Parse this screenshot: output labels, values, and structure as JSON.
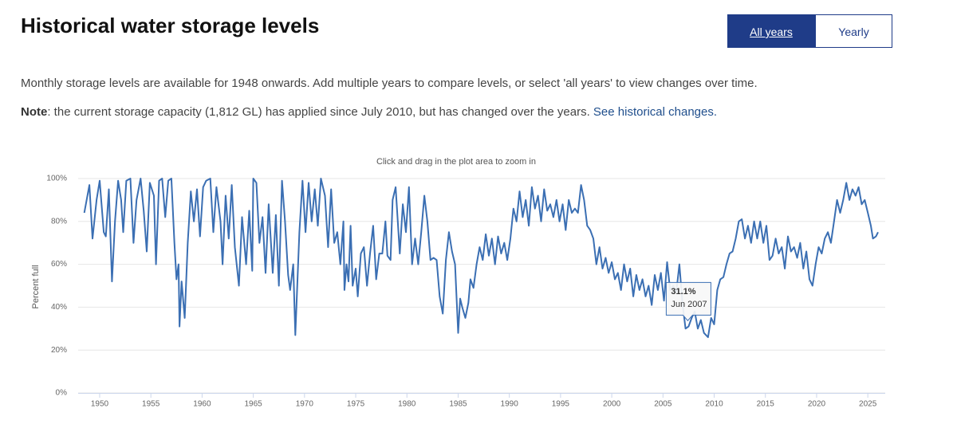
{
  "header": {
    "title": "Historical water storage levels"
  },
  "buttons": [
    "All years",
    "Yearly"
  ],
  "intro": "Monthly storage levels are available for 1948 onwards. Add multiple years to compare levels, or select 'all years' to view changes over time.",
  "note": {
    "label": "Note",
    "text": ": the current storage capacity (1,812 GL) has applied since July 2010, but has changed over the years.",
    "link": "See historical changes."
  },
  "chart_data": {
    "type": "line",
    "subtitle": "Click and drag in the plot area to zoom in",
    "y_label": "Percent full",
    "color": "#3b6fb3",
    "grid": true,
    "xlim": [
      1947.9,
      2026.7
    ],
    "xticks": [
      1950,
      1955,
      1960,
      1965,
      1970,
      1975,
      1980,
      1985,
      1990,
      1995,
      2000,
      2005,
      2010,
      2015,
      2020,
      2025
    ],
    "ylim": [
      0,
      100
    ],
    "yticks": [
      {
        "value": 0,
        "label": "0%"
      },
      {
        "value": 20,
        "label": "20%"
      },
      {
        "value": 40,
        "label": "40%"
      },
      {
        "value": 60,
        "label": "60%"
      },
      {
        "value": 80,
        "label": "80%"
      },
      {
        "value": 100,
        "label": "100%"
      }
    ],
    "tooltip": {
      "x": 2007.42,
      "value": 31.1,
      "label": "31.1%",
      "date": "Jun 2007"
    },
    "x": [
      1948.5,
      1949.0,
      1949.3,
      1949.7,
      1950.0,
      1950.4,
      1950.6,
      1950.9,
      1951.2,
      1951.5,
      1951.8,
      1952.1,
      1952.3,
      1952.6,
      1953.0,
      1953.3,
      1953.6,
      1954.0,
      1954.3,
      1954.6,
      1954.9,
      1955.3,
      1955.5,
      1955.8,
      1956.1,
      1956.4,
      1956.7,
      1957.0,
      1957.3,
      1957.5,
      1957.7,
      1957.8,
      1958.0,
      1958.3,
      1958.6,
      1958.9,
      1959.2,
      1959.5,
      1959.8,
      1960.1,
      1960.4,
      1960.8,
      1961.1,
      1961.4,
      1961.8,
      1962.0,
      1962.3,
      1962.6,
      1962.9,
      1963.2,
      1963.6,
      1963.9,
      1964.3,
      1964.6,
      1964.9,
      1965.0,
      1965.3,
      1965.6,
      1965.9,
      1966.2,
      1966.5,
      1966.9,
      1967.2,
      1967.5,
      1967.8,
      1968.1,
      1968.4,
      1968.6,
      1968.9,
      1969.1,
      1969.5,
      1969.8,
      1970.1,
      1970.4,
      1970.7,
      1971.0,
      1971.3,
      1971.6,
      1972.0,
      1972.3,
      1972.6,
      1972.9,
      1973.2,
      1973.5,
      1973.8,
      1973.9,
      1974.1,
      1974.3,
      1974.5,
      1974.7,
      1975.0,
      1975.2,
      1975.5,
      1975.8,
      1976.1,
      1976.4,
      1976.7,
      1977.0,
      1977.3,
      1977.6,
      1977.9,
      1978.1,
      1978.4,
      1978.6,
      1978.9,
      1979.3,
      1979.6,
      1979.9,
      1980.2,
      1980.5,
      1980.8,
      1981.1,
      1981.4,
      1981.7,
      1982.0,
      1982.3,
      1982.6,
      1982.9,
      1983.2,
      1983.5,
      1983.8,
      1984.1,
      1984.4,
      1984.7,
      1985.0,
      1985.2,
      1985.4,
      1985.7,
      1986.0,
      1986.2,
      1986.5,
      1986.8,
      1987.1,
      1987.4,
      1987.7,
      1988.0,
      1988.3,
      1988.6,
      1988.9,
      1989.2,
      1989.5,
      1989.8,
      1990.1,
      1990.4,
      1990.7,
      1991.0,
      1991.3,
      1991.6,
      1991.9,
      1992.2,
      1992.5,
      1992.8,
      1993.1,
      1993.4,
      1993.7,
      1994.0,
      1994.3,
      1994.6,
      1994.9,
      1995.2,
      1995.5,
      1995.8,
      1996.1,
      1996.4,
      1996.7,
      1997.0,
      1997.3,
      1997.6,
      1997.9,
      1998.2,
      1998.5,
      1998.8,
      1999.1,
      1999.4,
      1999.7,
      2000.0,
      2000.3,
      2000.6,
      2000.9,
      2001.2,
      2001.5,
      2001.8,
      2002.1,
      2002.4,
      2002.7,
      2003.0,
      2003.3,
      2003.6,
      2003.9,
      2004.2,
      2004.5,
      2004.8,
      2005.1,
      2005.4,
      2005.7,
      2006.0,
      2006.3,
      2006.6,
      2006.9,
      2007.2,
      2007.5,
      2007.8,
      2008.1,
      2008.4,
      2008.7,
      2009.0,
      2009.4,
      2009.7,
      2010.0,
      2010.3,
      2010.6,
      2010.9,
      2011.2,
      2011.5,
      2011.8,
      2012.1,
      2012.4,
      2012.7,
      2013.0,
      2013.3,
      2013.6,
      2013.9,
      2014.2,
      2014.5,
      2014.8,
      2015.1,
      2015.4,
      2015.7,
      2016.0,
      2016.3,
      2016.6,
      2016.9,
      2017.2,
      2017.5,
      2017.8,
      2018.1,
      2018.4,
      2018.7,
      2019.0,
      2019.3,
      2019.6,
      2019.9,
      2020.2,
      2020.5,
      2020.8,
      2021.1,
      2021.4,
      2021.7,
      2022.0,
      2022.3,
      2022.6,
      2022.9,
      2023.2,
      2023.5,
      2023.8,
      2024.1,
      2024.4,
      2024.7,
      2025.0,
      2025.3,
      2025.5,
      2025.8,
      2026.0
    ],
    "values": [
      84,
      97,
      72,
      90,
      99,
      75,
      73,
      95,
      52,
      80,
      99,
      90,
      75,
      99,
      100,
      70,
      90,
      100,
      85,
      66,
      98,
      92,
      60,
      99,
      100,
      82,
      99,
      100,
      70,
      53,
      60,
      31,
      52,
      35,
      70,
      94,
      80,
      95,
      73,
      96,
      99,
      100,
      75,
      96,
      80,
      60,
      92,
      72,
      97,
      68,
      50,
      82,
      60,
      85,
      57,
      100,
      98,
      70,
      82,
      56,
      88,
      56,
      83,
      50,
      99,
      80,
      55,
      48,
      60,
      27,
      75,
      99,
      75,
      98,
      80,
      95,
      78,
      100,
      92,
      68,
      95,
      70,
      75,
      60,
      80,
      48,
      60,
      52,
      78,
      50,
      58,
      45,
      65,
      68,
      50,
      65,
      78,
      53,
      65,
      65,
      80,
      64,
      62,
      90,
      96,
      65,
      88,
      75,
      96,
      60,
      72,
      60,
      75,
      92,
      80,
      62,
      63,
      62,
      45,
      37,
      62,
      75,
      66,
      60,
      28,
      44,
      40,
      35,
      42,
      53,
      49,
      60,
      68,
      62,
      74,
      64,
      72,
      60,
      73,
      65,
      70,
      62,
      72,
      86,
      80,
      94,
      82,
      90,
      78,
      96,
      86,
      92,
      80,
      95,
      85,
      88,
      82,
      90,
      80,
      88,
      76,
      90,
      84,
      86,
      84,
      97,
      90,
      78,
      76,
      72,
      60,
      68,
      58,
      63,
      56,
      61,
      53,
      56,
      48,
      60,
      52,
      58,
      45,
      55,
      48,
      53,
      45,
      50,
      41,
      55,
      48,
      56,
      43,
      61,
      48,
      50,
      47,
      60,
      42,
      30,
      31,
      35,
      38,
      30,
      34,
      28,
      26,
      35,
      32,
      48,
      53,
      54,
      60,
      65,
      66,
      72,
      80,
      81,
      72,
      78,
      70,
      80,
      72,
      80,
      70,
      78,
      62,
      64,
      72,
      65,
      68,
      58,
      73,
      66,
      68,
      63,
      70,
      58,
      66,
      53,
      50,
      60,
      68,
      65,
      72,
      75,
      70,
      80,
      90,
      84,
      90,
      98,
      90,
      95,
      92,
      96,
      88,
      90,
      84,
      78,
      72,
      73,
      75
    ]
  }
}
